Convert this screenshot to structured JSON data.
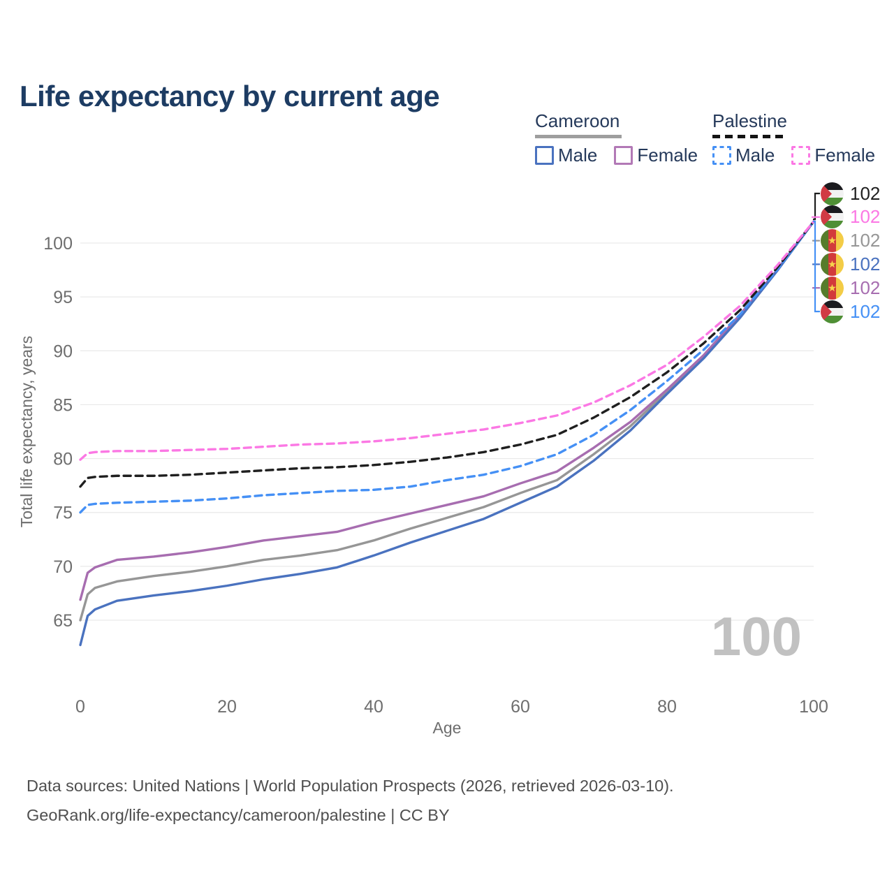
{
  "title": "Life expectancy by current age",
  "colors": {
    "title": "#1d3c63",
    "axis_text": "#6e6e6e",
    "grid": "#e9e9e9",
    "watermark": "#c1c1c1",
    "footer": "#4f4f4f",
    "cameroon_male": "#4a72bf",
    "cameroon_female": "#a76db0",
    "cameroon_both": "#969696",
    "palestine_male": "#4590f5",
    "palestine_female": "#fb78e4",
    "palestine_both": "#1f1f1f"
  },
  "legend": {
    "groups": [
      {
        "name": "Cameroon",
        "style": "solid",
        "underline_color": "#9e9e9e",
        "items": [
          {
            "label": "Male",
            "color": "#4a72bf",
            "dashed": false
          },
          {
            "label": "Female",
            "color": "#b279b6",
            "dashed": false
          }
        ]
      },
      {
        "name": "Palestine",
        "style": "dashed",
        "underline_color": "#141414",
        "items": [
          {
            "label": "Male",
            "color": "#4590f5",
            "dashed": true
          },
          {
            "label": "Female",
            "color": "#fb78e4",
            "dashed": true
          }
        ]
      }
    ]
  },
  "end_labels": [
    {
      "flag": "palestine",
      "value": "102",
      "color": "#1f1f1f"
    },
    {
      "flag": "palestine",
      "value": "102",
      "color": "#fb78e4"
    },
    {
      "flag": "cameroon",
      "value": "102",
      "color": "#969696"
    },
    {
      "flag": "cameroon",
      "value": "102",
      "color": "#4a72bf"
    },
    {
      "flag": "cameroon",
      "value": "102",
      "color": "#a76db0"
    },
    {
      "flag": "palestine",
      "value": "102",
      "color": "#4590f5"
    }
  ],
  "watermark": "100",
  "footer": {
    "line1": "Data sources: United Nations | World Population Prospects (2026, retrieved 2026-03-10).",
    "line2": "GeoRank.org/life-expectancy/cameroon/palestine | CC BY"
  },
  "chart_data": {
    "type": "line",
    "title": "Life expectancy by current age",
    "xlabel": "Age",
    "ylabel": "Total life expectancy, years",
    "xlim": [
      0,
      100
    ],
    "ylim": [
      62,
      103
    ],
    "x_ticks": [
      0,
      20,
      40,
      60,
      80,
      100
    ],
    "y_ticks": [
      65,
      70,
      75,
      80,
      85,
      90,
      95,
      100
    ],
    "grid": "horizontal",
    "legend_position": "top-right",
    "x": [
      0,
      1,
      2,
      5,
      10,
      15,
      20,
      25,
      30,
      35,
      40,
      45,
      50,
      55,
      60,
      65,
      70,
      75,
      80,
      85,
      90,
      95,
      100
    ],
    "series": [
      {
        "name": "Cameroon Both sexes",
        "color": "#969696",
        "dash": "solid",
        "values": [
          65.0,
          67.4,
          68.0,
          68.6,
          69.1,
          69.5,
          70.0,
          70.6,
          71.0,
          71.5,
          72.4,
          73.5,
          74.5,
          75.5,
          76.8,
          78.0,
          80.4,
          83.0,
          86.2,
          89.5,
          93.2,
          97.5,
          102
        ]
      },
      {
        "name": "Cameroon Female",
        "color": "#a76db0",
        "dash": "solid",
        "values": [
          66.9,
          69.4,
          69.9,
          70.6,
          70.9,
          71.3,
          71.8,
          72.4,
          72.8,
          73.2,
          74.1,
          74.9,
          75.7,
          76.5,
          77.7,
          78.8,
          81.0,
          83.4,
          86.4,
          89.6,
          93.4,
          97.5,
          102
        ]
      },
      {
        "name": "Cameroon Male",
        "color": "#4a72bf",
        "dash": "solid",
        "values": [
          62.7,
          65.4,
          66.0,
          66.8,
          67.3,
          67.7,
          68.2,
          68.8,
          69.3,
          69.9,
          71.0,
          72.2,
          73.3,
          74.4,
          75.9,
          77.4,
          79.8,
          82.6,
          86.0,
          89.3,
          93.1,
          97.4,
          102
        ]
      },
      {
        "name": "Palestine Male",
        "color": "#4590f5",
        "dash": "dashed",
        "values": [
          75.0,
          75.7,
          75.8,
          75.9,
          76.0,
          76.1,
          76.3,
          76.6,
          76.8,
          77.0,
          77.1,
          77.4,
          78.0,
          78.5,
          79.3,
          80.4,
          82.2,
          84.5,
          87.2,
          90.1,
          93.4,
          97.5,
          102
        ]
      },
      {
        "name": "Palestine Both sexes",
        "color": "#1f1f1f",
        "dash": "dashed",
        "values": [
          77.4,
          78.2,
          78.3,
          78.4,
          78.4,
          78.5,
          78.7,
          78.9,
          79.1,
          79.2,
          79.4,
          79.7,
          80.1,
          80.6,
          81.3,
          82.2,
          83.8,
          85.7,
          88.0,
          90.7,
          93.8,
          97.7,
          102
        ]
      },
      {
        "name": "Palestine Female",
        "color": "#fb78e4",
        "dash": "dashed",
        "values": [
          79.9,
          80.5,
          80.6,
          80.7,
          80.7,
          80.8,
          80.9,
          81.1,
          81.3,
          81.4,
          81.6,
          81.9,
          82.3,
          82.7,
          83.3,
          84.0,
          85.2,
          86.8,
          88.7,
          91.3,
          94.2,
          97.9,
          102
        ]
      }
    ]
  }
}
